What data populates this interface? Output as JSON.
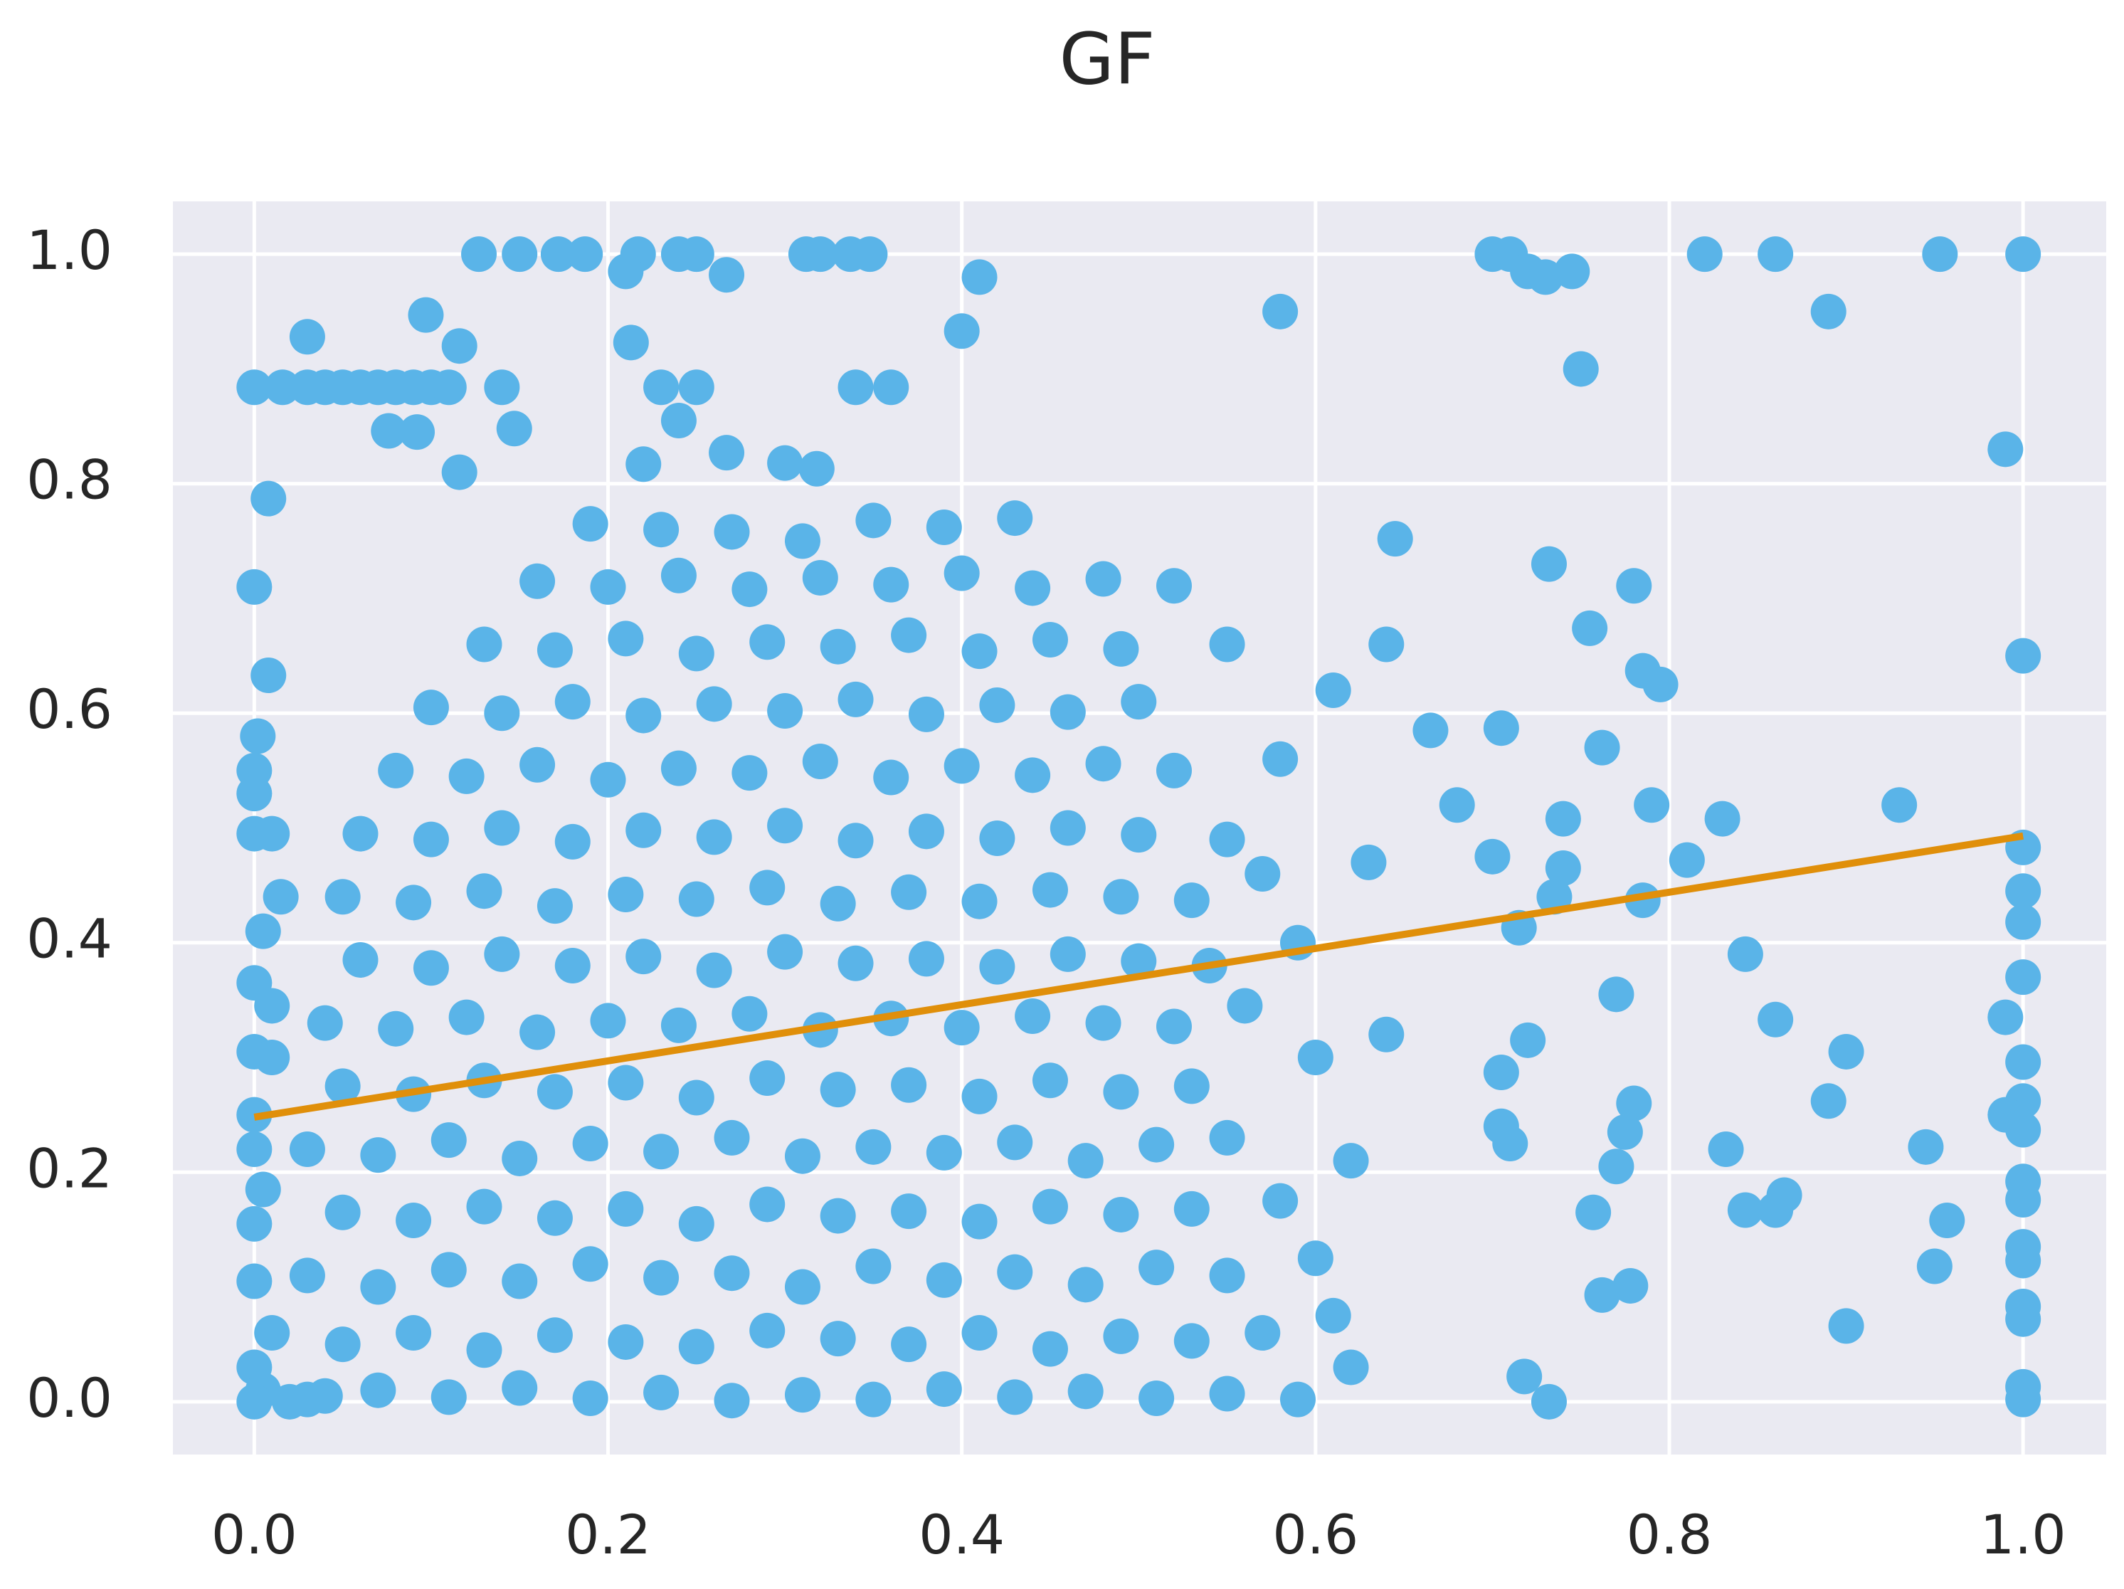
{
  "chart_data": {
    "type": "scatter",
    "title": "GF",
    "grid": true,
    "xlim": [
      -0.046,
      1.047
    ],
    "ylim": [
      -0.046,
      1.046
    ],
    "xticks": [
      {
        "value": 0,
        "label": "0.0"
      },
      0.2,
      0.4,
      0.6,
      0.8,
      {
        "value": 1,
        "label": "1.0"
      }
    ],
    "yticks": [
      {
        "value": 0,
        "label": "0.0"
      },
      0.2,
      0.4,
      0.6,
      0.8,
      {
        "value": 1,
        "label": "1.0"
      }
    ],
    "points": {
      "color": "#5ab4e8",
      "x": [
        0.127,
        0.15,
        0.172,
        0.187,
        0.217,
        0.24,
        0.25,
        0.312,
        0.32,
        0.337,
        0.348,
        0.7,
        0.71,
        0.82,
        0.86,
        0.953,
        1.0,
        0.21,
        0.267,
        0.41,
        0.72,
        0.73,
        0.745,
        0.58,
        0.89,
        0.75,
        0.4,
        0.03,
        0.097,
        0.116,
        0.213,
        0,
        0.016,
        0.03,
        0.04,
        0.05,
        0.06,
        0.07,
        0.08,
        0.09,
        0.1,
        0.11,
        0.14,
        0.23,
        0.25,
        0.34,
        0.36,
        0.076,
        0.092,
        0.147,
        0.24,
        0.99,
        0.116,
        0.22,
        0.267,
        0.3,
        0.318,
        0.008,
        0.645,
        0.732,
        0.78,
        0.755,
        0.64,
        0.785,
        0.795,
        0.705,
        0.665,
        0.762,
        0.68,
        0.79,
        0.93,
        0.83,
        0.74,
        0.81,
        0.7,
        0.74,
        1,
        1,
        1,
        1,
        1,
        0.99,
        0.77,
        0.843,
        0.86,
        0.72,
        0.9,
        0.705,
        1,
        0.89,
        1,
        0.99,
        1,
        0.705,
        0.71,
        0.78,
        0.775,
        0.832,
        0.945,
        0.77,
        1,
        1,
        0.757,
        0.843,
        0.86,
        0.865,
        0.957,
        1,
        1,
        0.95,
        0.778,
        0.762,
        1,
        1,
        0.9,
        0.718,
        1,
        1,
        0.732,
        0.785,
        0.715,
        0.735,
        0,
        0.008,
        0.002,
        0,
        0,
        0,
        0.01,
        0.015,
        0.005,
        0,
        0.01,
        0,
        0.01,
        0,
        0,
        0.005,
        0,
        0,
        0.01,
        0,
        0.005,
        0,
        0.02,
        0.04,
        0.03,
        0.07,
        0.11,
        0.15,
        0.19,
        0.23,
        0.27,
        0.31,
        0.35,
        0.39,
        0.43,
        0.47,
        0.51,
        0.55,
        0.59,
        0.62,
        0.05,
        0.09,
        0.13,
        0.17,
        0.21,
        0.25,
        0.29,
        0.33,
        0.37,
        0.41,
        0.45,
        0.49,
        0.53,
        0.57,
        0.61,
        0.03,
        0.07,
        0.11,
        0.15,
        0.19,
        0.23,
        0.27,
        0.31,
        0.35,
        0.39,
        0.43,
        0.47,
        0.51,
        0.55,
        0.6,
        0.05,
        0.09,
        0.13,
        0.17,
        0.21,
        0.25,
        0.29,
        0.33,
        0.37,
        0.41,
        0.45,
        0.49,
        0.53,
        0.58,
        0.03,
        0.07,
        0.11,
        0.15,
        0.19,
        0.23,
        0.27,
        0.31,
        0.35,
        0.39,
        0.43,
        0.47,
        0.51,
        0.55,
        0.62,
        0.05,
        0.09,
        0.13,
        0.17,
        0.21,
        0.25,
        0.29,
        0.33,
        0.37,
        0.41,
        0.45,
        0.49,
        0.53,
        0.6,
        0.04,
        0.08,
        0.12,
        0.16,
        0.2,
        0.24,
        0.28,
        0.32,
        0.36,
        0.4,
        0.44,
        0.48,
        0.52,
        0.56,
        0.64,
        0.06,
        0.1,
        0.14,
        0.18,
        0.22,
        0.26,
        0.3,
        0.34,
        0.38,
        0.42,
        0.46,
        0.5,
        0.54,
        0.59,
        0.05,
        0.09,
        0.13,
        0.17,
        0.21,
        0.25,
        0.29,
        0.33,
        0.37,
        0.41,
        0.45,
        0.49,
        0.53,
        0.57,
        0.63,
        0.06,
        0.1,
        0.14,
        0.18,
        0.22,
        0.26,
        0.3,
        0.34,
        0.38,
        0.42,
        0.46,
        0.5,
        0.55,
        0.08,
        0.12,
        0.16,
        0.2,
        0.24,
        0.28,
        0.32,
        0.36,
        0.4,
        0.44,
        0.48,
        0.52,
        0.58,
        0.61,
        0.1,
        0.14,
        0.18,
        0.22,
        0.26,
        0.3,
        0.34,
        0.38,
        0.42,
        0.46,
        0.5,
        0.13,
        0.17,
        0.21,
        0.25,
        0.29,
        0.33,
        0.37,
        0.41,
        0.45,
        0.49,
        0.55,
        0.16,
        0.2,
        0.24,
        0.28,
        0.32,
        0.36,
        0.4,
        0.44,
        0.48,
        0.52,
        0.19,
        0.23,
        0.27,
        0.31,
        0.35,
        0.39,
        0.43
      ],
      "y": [
        1,
        1,
        1,
        1,
        1,
        1,
        1,
        1,
        1,
        1,
        1,
        1,
        1,
        1,
        1,
        1,
        1,
        0.985,
        0.982,
        0.98,
        0.985,
        0.98,
        0.985,
        0.95,
        0.95,
        0.9,
        0.933,
        0.928,
        0.947,
        0.92,
        0.923,
        0.884,
        0.884,
        0.884,
        0.884,
        0.884,
        0.884,
        0.884,
        0.884,
        0.884,
        0.884,
        0.884,
        0.884,
        0.884,
        0.884,
        0.884,
        0.884,
        0.846,
        0.845,
        0.848,
        0.855,
        0.83,
        0.81,
        0.817,
        0.827,
        0.818,
        0.813,
        0.787,
        0.752,
        0.73,
        0.711,
        0.674,
        0.66,
        0.637,
        0.625,
        0.587,
        0.585,
        0.57,
        0.52,
        0.52,
        0.52,
        0.508,
        0.508,
        0.472,
        0.475,
        0.465,
        0.65,
        0.483,
        0.445,
        0.418,
        0.37,
        0.335,
        0.355,
        0.39,
        0.333,
        0.315,
        0.305,
        0.287,
        0.296,
        0.262,
        0.262,
        0.25,
        0.237,
        0.24,
        0.225,
        0.26,
        0.235,
        0.22,
        0.222,
        0.205,
        0.192,
        0.176,
        0.165,
        0.167,
        0.167,
        0.18,
        0.158,
        0.135,
        0.123,
        0.118,
        0.101,
        0.093,
        0.083,
        0.072,
        0.066,
        0.022,
        0.013,
        0.002,
        0,
        0.437,
        0.413,
        0.44,
        0.71,
        0.633,
        0.58,
        0.55,
        0.53,
        0.495,
        0.495,
        0.44,
        0.41,
        0.365,
        0.345,
        0.305,
        0.3,
        0.25,
        0.22,
        0.185,
        0.155,
        0.105,
        0.06,
        0.03,
        0.01,
        0,
        0,
        0.005,
        0.002,
        0.01,
        0.004,
        0.012,
        0.003,
        0.008,
        0.001,
        0.006,
        0.002,
        0.011,
        0.004,
        0.009,
        0.003,
        0.007,
        0.002,
        0.03,
        0.05,
        0.06,
        0.045,
        0.058,
        0.052,
        0.048,
        0.062,
        0.055,
        0.05,
        0.06,
        0.046,
        0.057,
        0.053,
        0.06,
        0.075,
        0.11,
        0.1,
        0.115,
        0.105,
        0.12,
        0.108,
        0.112,
        0.1,
        0.118,
        0.106,
        0.113,
        0.102,
        0.117,
        0.11,
        0.125,
        0.165,
        0.158,
        0.17,
        0.16,
        0.168,
        0.155,
        0.172,
        0.162,
        0.166,
        0.157,
        0.17,
        0.163,
        0.168,
        0.175,
        0.22,
        0.215,
        0.228,
        0.212,
        0.225,
        0.218,
        0.23,
        0.214,
        0.222,
        0.217,
        0.226,
        0.21,
        0.224,
        0.23,
        0.21,
        0.275,
        0.268,
        0.28,
        0.27,
        0.278,
        0.265,
        0.282,
        0.272,
        0.276,
        0.266,
        0.28,
        0.27,
        0.275,
        0.3,
        0.33,
        0.325,
        0.335,
        0.322,
        0.332,
        0.328,
        0.338,
        0.324,
        0.334,
        0.326,
        0.336,
        0.33,
        0.327,
        0.345,
        0.32,
        0.385,
        0.378,
        0.39,
        0.38,
        0.388,
        0.376,
        0.392,
        0.382,
        0.386,
        0.379,
        0.39,
        0.384,
        0.38,
        0.4,
        0.44,
        0.435,
        0.445,
        0.432,
        0.442,
        0.438,
        0.448,
        0.434,
        0.444,
        0.436,
        0.446,
        0.44,
        0.437,
        0.46,
        0.47,
        0.495,
        0.49,
        0.5,
        0.488,
        0.498,
        0.492,
        0.502,
        0.489,
        0.497,
        0.491,
        0.5,
        0.494,
        0.49,
        0.55,
        0.545,
        0.555,
        0.542,
        0.552,
        0.548,
        0.558,
        0.544,
        0.554,
        0.546,
        0.556,
        0.55,
        0.56,
        0.62,
        0.605,
        0.6,
        0.61,
        0.598,
        0.608,
        0.602,
        0.612,
        0.599,
        0.607,
        0.601,
        0.61,
        0.66,
        0.655,
        0.665,
        0.652,
        0.662,
        0.658,
        0.668,
        0.654,
        0.664,
        0.656,
        0.66,
        0.715,
        0.71,
        0.72,
        0.708,
        0.718,
        0.712,
        0.722,
        0.709,
        0.717,
        0.711,
        0.765,
        0.76,
        0.758,
        0.75,
        0.768,
        0.762,
        0.77
      ]
    },
    "fit": {
      "color": "#e08f0a",
      "x": [
        0,
        1
      ],
      "y": [
        0.248,
        0.493
      ]
    }
  }
}
